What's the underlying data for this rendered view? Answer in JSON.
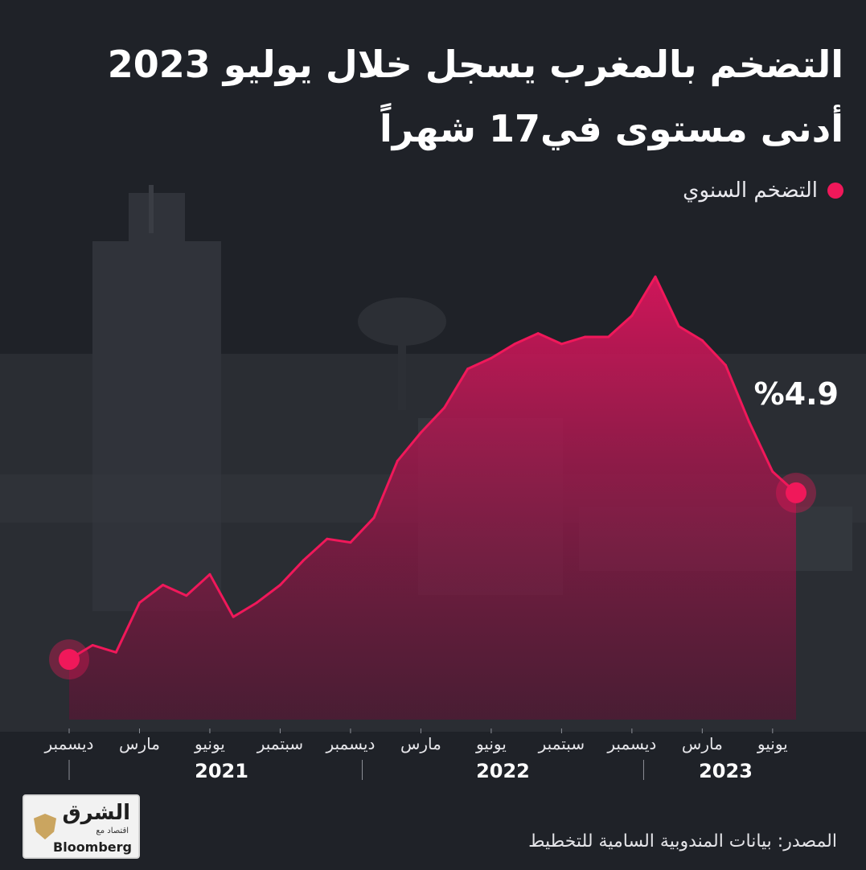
{
  "title_lines": [
    "التضخم بالمغرب يسجل خلال يوليو 2023",
    "أدنى مستوى في17 شهراً"
  ],
  "legend_label": "التضخم السنوي",
  "last_value_label": "%4.9",
  "source": "المصدر: بيانات المندوبية السامية للتخطيط",
  "logo": {
    "name": "الشرق",
    "sub": "اقتصاد مع",
    "partner": "Bloomberg"
  },
  "colors": {
    "background": "#1f2228",
    "series": "#f0185a",
    "area": "#c2185b",
    "text": "#ffffff"
  },
  "chart_data": {
    "type": "area",
    "series": [
      {
        "name": "التضخم السنوي",
        "x": [
          "2020-12",
          "2021-01",
          "2021-02",
          "2021-03",
          "2021-04",
          "2021-05",
          "2021-06",
          "2021-07",
          "2021-08",
          "2021-09",
          "2021-10",
          "2021-11",
          "2021-12",
          "2022-01",
          "2022-02",
          "2022-03",
          "2022-04",
          "2022-05",
          "2022-06",
          "2022-07",
          "2022-08",
          "2022-09",
          "2022-10",
          "2022-11",
          "2022-12",
          "2023-01",
          "2023-02",
          "2023-03",
          "2023-04",
          "2023-05",
          "2023-06",
          "2023-07"
        ],
        "values": [
          0.2,
          0.6,
          0.4,
          1.8,
          2.3,
          2.0,
          2.6,
          1.4,
          1.8,
          2.3,
          3.0,
          3.6,
          3.5,
          4.2,
          5.8,
          6.6,
          7.3,
          8.4,
          8.7,
          9.1,
          9.4,
          9.1,
          9.3,
          9.3,
          9.9,
          11.0,
          9.6,
          9.2,
          8.5,
          6.9,
          5.5,
          4.9
        ]
      }
    ],
    "x_tick_labels": [
      {
        "x": "2020-12",
        "label": "ديسمبر"
      },
      {
        "x": "2021-03",
        "label": "مارس"
      },
      {
        "x": "2021-06",
        "label": "يونيو"
      },
      {
        "x": "2021-09",
        "label": "سبتمبر"
      },
      {
        "x": "2021-12",
        "label": "ديسمبر"
      },
      {
        "x": "2022-03",
        "label": "مارس"
      },
      {
        "x": "2022-06",
        "label": "يونيو"
      },
      {
        "x": "2022-09",
        "label": "سبتمبر"
      },
      {
        "x": "2022-12",
        "label": "ديسمبر"
      },
      {
        "x": "2023-03",
        "label": "مارس"
      },
      {
        "x": "2023-06",
        "label": "يونيو"
      }
    ],
    "year_labels": [
      {
        "label": "2021",
        "from": "2021-01",
        "to": "2021-12"
      },
      {
        "label": "2022",
        "from": "2022-01",
        "to": "2022-12"
      },
      {
        "label": "2023",
        "from": "2023-01",
        "to": "2023-07"
      }
    ],
    "annotation": {
      "x": "2023-07",
      "label": "%4.9"
    },
    "ylim": [
      -1.5,
      12
    ],
    "grid": false,
    "xlabel": "",
    "ylabel": "",
    "legend_position": "top-right"
  }
}
